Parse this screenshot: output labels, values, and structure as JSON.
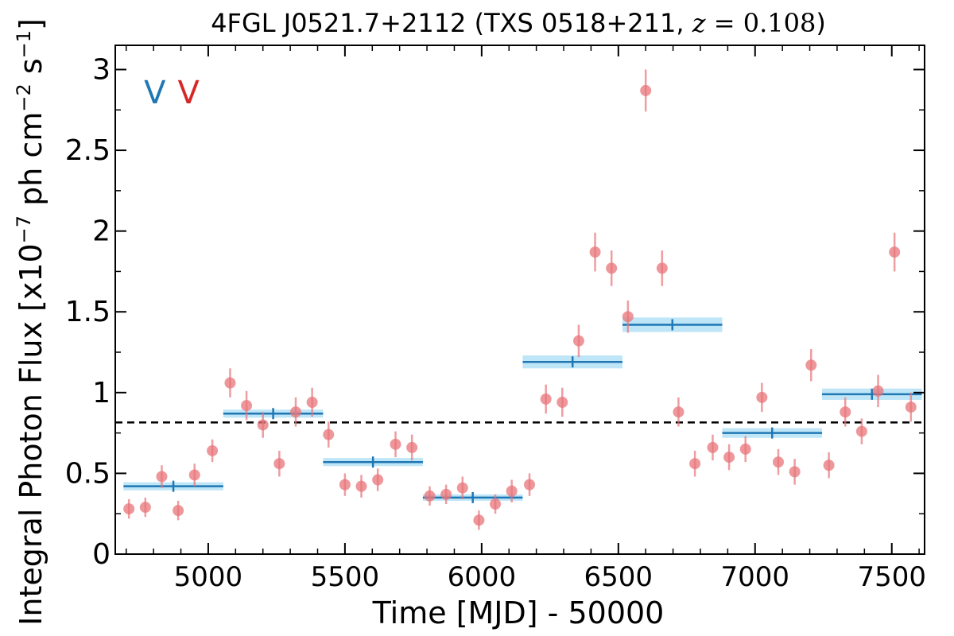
{
  "chart_data": {
    "type": "scatter",
    "title": "4FGL J0521.7+2112 (TXS 0518+211, z = 0.108)",
    "title_parts": {
      "prefix": "4FGL J0521.7+2112 (TXS 0518+211, ",
      "z_symbol": "z",
      "z_value": " = 0.108",
      "suffix": ")"
    },
    "xlabel": "Time [MJD] - 50000",
    "ylabel": "Integral Photon Flux [x10",
    "ylabel_exp": "−7",
    "ylabel_mid": " ph cm",
    "ylabel_exp2": "−2",
    "ylabel_mid2": " s",
    "ylabel_exp3": "−1",
    "ylabel_end": "]",
    "xlim": [
      4660,
      7620
    ],
    "ylim": [
      0,
      3.15
    ],
    "x_ticks": [
      5000,
      5500,
      6000,
      6500,
      7000,
      7500
    ],
    "x_tick_labels": [
      "5000",
      "5500",
      "6000",
      "6500",
      "7000",
      "7500"
    ],
    "y_ticks": [
      0,
      0.5,
      1,
      1.5,
      2,
      2.5,
      3
    ],
    "y_tick_labels": [
      "0",
      "0.5",
      "1",
      "1.5",
      "2",
      "2.5",
      "3"
    ],
    "reference_line": {
      "y": 0.815,
      "style": "dashed",
      "color": "#000000"
    },
    "markers": [
      {
        "label": "V",
        "x": 4805,
        "color": "#1f77b4"
      },
      {
        "label": "V",
        "x": 4928,
        "color": "#d62728"
      }
    ],
    "series": [
      {
        "kind": "points",
        "color": "#e8747a",
        "x": [
          4710,
          4770,
          4830,
          4890,
          4950,
          5015,
          5080,
          5140,
          5200,
          5260,
          5320,
          5380,
          5440,
          5500,
          5560,
          5620,
          5685,
          5745,
          5810,
          5870,
          5930,
          5990,
          6050,
          6110,
          6175,
          6235,
          6295,
          6355,
          6415,
          6475,
          6535,
          6600,
          6660,
          6720,
          6780,
          6845,
          6905,
          6965,
          7025,
          7085,
          7145,
          7205,
          7270,
          7330,
          7390,
          7450,
          7510,
          7570
        ],
        "y": [
          0.28,
          0.29,
          0.48,
          0.27,
          0.49,
          0.64,
          1.06,
          0.92,
          0.8,
          0.56,
          0.88,
          0.94,
          0.74,
          0.43,
          0.42,
          0.46,
          0.68,
          0.66,
          0.36,
          0.37,
          0.41,
          0.21,
          0.31,
          0.39,
          0.43,
          0.96,
          0.94,
          1.32,
          1.87,
          1.77,
          1.47,
          2.87,
          1.77,
          0.88,
          0.56,
          0.66,
          0.6,
          0.65,
          0.97,
          0.57,
          0.51,
          1.17,
          0.55,
          0.88,
          0.76,
          1.01,
          1.87,
          0.91
        ],
        "yerr": [
          0.06,
          0.06,
          0.07,
          0.06,
          0.07,
          0.07,
          0.09,
          0.09,
          0.08,
          0.08,
          0.09,
          0.09,
          0.08,
          0.07,
          0.07,
          0.07,
          0.08,
          0.08,
          0.06,
          0.06,
          0.07,
          0.06,
          0.06,
          0.07,
          0.07,
          0.09,
          0.09,
          0.1,
          0.12,
          0.11,
          0.1,
          0.13,
          0.11,
          0.09,
          0.08,
          0.08,
          0.08,
          0.08,
          0.09,
          0.08,
          0.08,
          0.1,
          0.08,
          0.09,
          0.08,
          0.1,
          0.12,
          0.09
        ]
      },
      {
        "kind": "blocks",
        "color": "#1f77b4",
        "band_color": "#bfe6f7",
        "x_start": [
          4690,
          5055,
          5420,
          5785,
          6150,
          6515,
          6880,
          7245
        ],
        "x_end": [
          5055,
          5420,
          5785,
          6150,
          6515,
          6880,
          7245,
          7610
        ],
        "y": [
          0.42,
          0.87,
          0.57,
          0.35,
          1.19,
          1.42,
          0.75,
          0.99
        ],
        "y_band": [
          0.025,
          0.025,
          0.025,
          0.02,
          0.04,
          0.045,
          0.03,
          0.035
        ]
      }
    ]
  }
}
